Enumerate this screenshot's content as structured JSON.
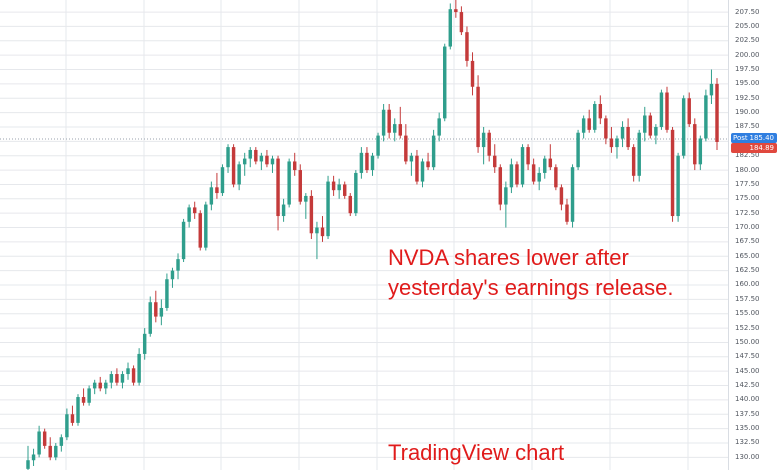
{
  "chart_data": {
    "type": "candlestick",
    "symbol": "NVDA",
    "ylim": [
      127.8,
      209.6
    ],
    "y_ticks": [
      "207.50",
      "205.00",
      "202.50",
      "200.00",
      "197.50",
      "195.00",
      "192.50",
      "190.00",
      "187.50",
      "185.00",
      "182.50",
      "180.00",
      "177.50",
      "175.00",
      "172.50",
      "170.00",
      "167.50",
      "165.00",
      "162.50",
      "160.00",
      "157.50",
      "155.00",
      "152.50",
      "150.00",
      "147.50",
      "145.00",
      "142.50",
      "140.00",
      "137.50",
      "135.00",
      "132.50",
      "130.00"
    ],
    "reference_price": 185.4,
    "last_price": 184.89,
    "post_label": "Post",
    "post_value": "185.40",
    "last_value": "184.89",
    "grid": true,
    "colors": {
      "up": "#2f9e8c",
      "down": "#c43a3a",
      "grid": "#e6e8ec",
      "reference_line": "#9aa2ad",
      "post_badge": "#2f7ee0",
      "last_badge": "#e0483e",
      "annotation": "#e01b1b"
    },
    "candles": [
      [
        128.0,
        132.0,
        127.8,
        129.5
      ],
      [
        129.5,
        131.5,
        128.5,
        130.5
      ],
      [
        130.5,
        135.5,
        130.0,
        134.5
      ],
      [
        134.5,
        135.0,
        131.5,
        132.0
      ],
      [
        132.0,
        133.5,
        129.5,
        130.0
      ],
      [
        130.0,
        132.5,
        129.5,
        132.0
      ],
      [
        132.0,
        134.0,
        131.0,
        133.5
      ],
      [
        133.5,
        138.5,
        133.0,
        137.5
      ],
      [
        137.5,
        139.0,
        135.5,
        136.0
      ],
      [
        136.0,
        141.0,
        135.5,
        140.5
      ],
      [
        140.5,
        142.0,
        139.0,
        139.5
      ],
      [
        139.5,
        142.5,
        139.0,
        142.0
      ],
      [
        142.0,
        143.5,
        141.0,
        143.0
      ],
      [
        143.0,
        144.0,
        141.5,
        142.0
      ],
      [
        142.0,
        143.5,
        141.0,
        143.0
      ],
      [
        143.0,
        145.0,
        142.0,
        144.5
      ],
      [
        144.5,
        145.5,
        142.5,
        143.0
      ],
      [
        143.0,
        145.0,
        142.0,
        144.5
      ],
      [
        144.5,
        146.5,
        143.5,
        145.5
      ],
      [
        145.5,
        146.0,
        142.5,
        143.0
      ],
      [
        143.0,
        149.0,
        142.5,
        148.0
      ],
      [
        148.0,
        152.5,
        147.0,
        151.5
      ],
      [
        151.5,
        158.0,
        151.0,
        157.0
      ],
      [
        157.0,
        159.0,
        153.5,
        154.5
      ],
      [
        154.5,
        157.5,
        153.0,
        156.0
      ],
      [
        156.0,
        162.0,
        155.5,
        161.0
      ],
      [
        161.0,
        163.0,
        159.5,
        162.5
      ],
      [
        162.5,
        165.5,
        161.0,
        164.5
      ],
      [
        164.5,
        171.5,
        164.0,
        171.0
      ],
      [
        171.0,
        174.0,
        170.0,
        173.5
      ],
      [
        173.5,
        174.5,
        171.5,
        172.5
      ],
      [
        172.5,
        173.0,
        166.0,
        166.5
      ],
      [
        166.5,
        174.5,
        166.0,
        174.0
      ],
      [
        174.0,
        178.0,
        173.0,
        177.0
      ],
      [
        177.0,
        179.5,
        175.0,
        176.0
      ],
      [
        176.0,
        181.0,
        175.5,
        180.5
      ],
      [
        180.5,
        184.5,
        179.5,
        184.0
      ],
      [
        184.0,
        184.5,
        177.0,
        177.5
      ],
      [
        177.5,
        181.5,
        176.5,
        181.0
      ],
      [
        181.0,
        183.0,
        179.0,
        182.0
      ],
      [
        182.0,
        184.0,
        180.5,
        183.5
      ],
      [
        183.5,
        184.0,
        181.0,
        181.5
      ],
      [
        181.5,
        183.0,
        180.0,
        182.5
      ],
      [
        182.5,
        183.5,
        180.5,
        181.0
      ],
      [
        181.0,
        182.5,
        179.5,
        182.0
      ],
      [
        182.0,
        182.5,
        169.5,
        172.0
      ],
      [
        172.0,
        175.0,
        171.0,
        174.0
      ],
      [
        174.0,
        182.0,
        173.5,
        181.5
      ],
      [
        181.5,
        183.0,
        179.0,
        180.0
      ],
      [
        180.0,
        181.0,
        174.0,
        174.5
      ],
      [
        174.5,
        176.0,
        171.5,
        175.5
      ],
      [
        175.5,
        176.5,
        168.0,
        169.0
      ],
      [
        169.0,
        171.0,
        164.5,
        170.0
      ],
      [
        170.0,
        172.0,
        167.5,
        168.5
      ],
      [
        168.5,
        179.0,
        168.0,
        178.0
      ],
      [
        178.0,
        179.0,
        175.5,
        176.5
      ],
      [
        176.5,
        178.5,
        175.0,
        177.5
      ],
      [
        177.5,
        178.0,
        175.0,
        175.5
      ],
      [
        175.5,
        176.0,
        172.0,
        172.5
      ],
      [
        172.5,
        180.0,
        172.0,
        179.5
      ],
      [
        179.5,
        184.0,
        178.5,
        183.0
      ],
      [
        183.0,
        184.0,
        179.5,
        180.0
      ],
      [
        180.0,
        183.0,
        179.0,
        182.5
      ],
      [
        182.5,
        186.5,
        182.0,
        186.0
      ],
      [
        186.0,
        191.5,
        185.0,
        190.5
      ],
      [
        190.5,
        191.5,
        185.5,
        186.5
      ],
      [
        186.5,
        189.0,
        185.0,
        188.0
      ],
      [
        188.0,
        191.0,
        185.5,
        186.0
      ],
      [
        186.0,
        188.0,
        181.0,
        181.5
      ],
      [
        181.5,
        183.0,
        179.0,
        182.5
      ],
      [
        182.5,
        183.5,
        177.5,
        178.0
      ],
      [
        178.0,
        182.0,
        177.0,
        181.5
      ],
      [
        181.5,
        183.0,
        180.0,
        180.5
      ],
      [
        180.5,
        187.0,
        180.0,
        186.0
      ],
      [
        186.0,
        190.0,
        185.0,
        189.0
      ],
      [
        189.0,
        202.0,
        188.5,
        201.5
      ],
      [
        201.5,
        209.0,
        201.0,
        208.0
      ],
      [
        208.0,
        209.6,
        206.5,
        207.5
      ],
      [
        207.5,
        208.5,
        203.5,
        204.0
      ],
      [
        204.0,
        205.0,
        198.0,
        199.0
      ],
      [
        199.0,
        200.5,
        193.0,
        194.5
      ],
      [
        194.5,
        196.5,
        183.0,
        184.0
      ],
      [
        184.0,
        187.5,
        181.0,
        186.5
      ],
      [
        186.5,
        187.0,
        181.5,
        182.5
      ],
      [
        182.5,
        184.5,
        179.5,
        180.5
      ],
      [
        180.5,
        181.0,
        173.0,
        174.0
      ],
      [
        174.0,
        178.0,
        170.0,
        177.0
      ],
      [
        177.0,
        182.0,
        176.0,
        181.0
      ],
      [
        181.0,
        181.5,
        177.0,
        177.5
      ],
      [
        177.5,
        184.5,
        177.0,
        184.0
      ],
      [
        184.0,
        184.5,
        180.0,
        181.0
      ],
      [
        181.0,
        182.0,
        177.5,
        178.0
      ],
      [
        178.0,
        180.5,
        176.5,
        179.5
      ],
      [
        179.5,
        182.5,
        178.5,
        182.0
      ],
      [
        182.0,
        184.5,
        180.0,
        180.5
      ],
      [
        180.5,
        181.0,
        176.5,
        177.0
      ],
      [
        177.0,
        177.5,
        173.0,
        174.0
      ],
      [
        174.0,
        175.0,
        170.5,
        171.0
      ],
      [
        171.0,
        181.0,
        170.0,
        180.5
      ],
      [
        180.5,
        187.0,
        180.0,
        186.5
      ],
      [
        186.5,
        189.5,
        185.5,
        189.0
      ],
      [
        189.0,
        190.5,
        186.5,
        187.0
      ],
      [
        187.0,
        192.0,
        186.5,
        191.5
      ],
      [
        191.5,
        193.0,
        188.0,
        189.0
      ],
      [
        189.0,
        189.5,
        184.5,
        185.5
      ],
      [
        185.5,
        187.5,
        183.0,
        184.0
      ],
      [
        184.0,
        186.0,
        182.0,
        185.5
      ],
      [
        185.5,
        188.5,
        184.0,
        187.5
      ],
      [
        187.5,
        189.0,
        183.5,
        184.0
      ],
      [
        184.0,
        184.5,
        178.0,
        179.0
      ],
      [
        179.0,
        187.0,
        178.0,
        186.5
      ],
      [
        186.5,
        191.0,
        185.0,
        189.5
      ],
      [
        189.5,
        190.0,
        185.5,
        186.0
      ],
      [
        186.0,
        188.0,
        184.5,
        187.5
      ],
      [
        187.5,
        194.0,
        187.0,
        193.5
      ],
      [
        193.5,
        194.5,
        186.5,
        187.0
      ],
      [
        187.0,
        187.5,
        171.0,
        172.0
      ],
      [
        172.0,
        183.0,
        171.0,
        182.5
      ],
      [
        182.5,
        193.0,
        182.0,
        192.5
      ],
      [
        192.5,
        193.5,
        187.5,
        188.0
      ],
      [
        188.0,
        189.0,
        180.0,
        181.0
      ],
      [
        181.0,
        186.0,
        180.0,
        185.5
      ],
      [
        185.5,
        194.0,
        185.0,
        193.0
      ],
      [
        193.0,
        197.5,
        191.5,
        195.0
      ],
      [
        195.0,
        196.0,
        183.5,
        184.89
      ]
    ]
  },
  "annotation": {
    "line1": "NVDA shares lower after",
    "line2": "yesterday's earnings release."
  },
  "source_label": "TradingView chart"
}
